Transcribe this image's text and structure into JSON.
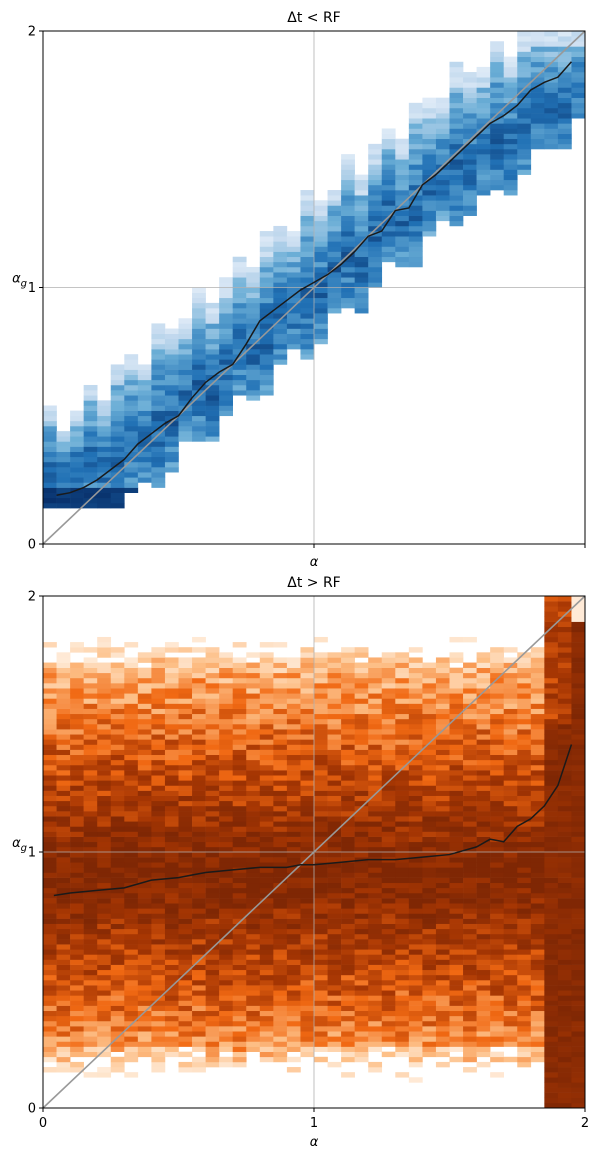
{
  "chart_data": [
    {
      "type": "heatmap",
      "title": "Δt < RF",
      "xlabel": "α",
      "ylabel": "α_g",
      "xlim": [
        0,
        2
      ],
      "ylim": [
        0,
        2
      ],
      "xticks": [],
      "yticks": [
        "0",
        "1",
        "2"
      ],
      "grid": "center crosshair",
      "colormap": [
        "#f7fbff",
        "#c6dbef",
        "#6baed6",
        "#2171b5",
        "#08306b"
      ],
      "reference_line": {
        "name": "identity",
        "x": [
          0,
          2
        ],
        "y": [
          0,
          2
        ],
        "color": "#999999"
      },
      "heat_band": {
        "lower_offset": 0.25,
        "upper_offset": 0.3,
        "min": 0.15,
        "max": 2.0
      },
      "median_line": {
        "color": "#1a1a1a",
        "x": [
          0.05,
          0.1,
          0.15,
          0.2,
          0.25,
          0.3,
          0.35,
          0.4,
          0.45,
          0.5,
          0.55,
          0.6,
          0.65,
          0.7,
          0.75,
          0.8,
          0.85,
          0.9,
          0.95,
          1.0,
          1.05,
          1.1,
          1.15,
          1.2,
          1.25,
          1.3,
          1.35,
          1.4,
          1.45,
          1.5,
          1.55,
          1.6,
          1.65,
          1.7,
          1.75,
          1.8,
          1.85,
          1.9,
          1.95
        ],
        "y": [
          0.19,
          0.2,
          0.22,
          0.25,
          0.29,
          0.33,
          0.39,
          0.43,
          0.47,
          0.5,
          0.57,
          0.63,
          0.67,
          0.7,
          0.78,
          0.87,
          0.91,
          0.95,
          0.99,
          1.02,
          1.05,
          1.09,
          1.14,
          1.2,
          1.22,
          1.3,
          1.31,
          1.4,
          1.44,
          1.49,
          1.54,
          1.59,
          1.64,
          1.67,
          1.71,
          1.77,
          1.8,
          1.82,
          1.88
        ]
      }
    },
    {
      "type": "heatmap",
      "title": "Δt > RF",
      "xlabel": "α",
      "ylabel": "α_g",
      "xlim": [
        0,
        2
      ],
      "ylim": [
        0,
        2
      ],
      "xticks": [
        "0",
        "1",
        "2"
      ],
      "yticks": [
        "0",
        "1",
        "2"
      ],
      "grid": "center crosshair",
      "colormap": [
        "#fff5eb",
        "#fdbe85",
        "#f16913",
        "#a63603",
        "#7f2704"
      ],
      "reference_line": {
        "name": "identity",
        "x": [
          0,
          2
        ],
        "y": [
          0,
          2
        ],
        "color": "#999999"
      },
      "median_line": {
        "color": "#1a1a1a",
        "x": [
          0.04,
          0.1,
          0.2,
          0.3,
          0.4,
          0.5,
          0.55,
          0.6,
          0.7,
          0.8,
          0.9,
          0.95,
          1.0,
          1.1,
          1.2,
          1.3,
          1.4,
          1.5,
          1.6,
          1.65,
          1.7,
          1.75,
          1.8,
          1.85,
          1.9,
          1.95
        ],
        "y": [
          0.83,
          0.84,
          0.85,
          0.86,
          0.89,
          0.9,
          0.91,
          0.92,
          0.93,
          0.94,
          0.94,
          0.95,
          0.95,
          0.96,
          0.97,
          0.97,
          0.98,
          0.99,
          1.02,
          1.05,
          1.04,
          1.1,
          1.13,
          1.18,
          1.26,
          1.42
        ]
      }
    }
  ]
}
